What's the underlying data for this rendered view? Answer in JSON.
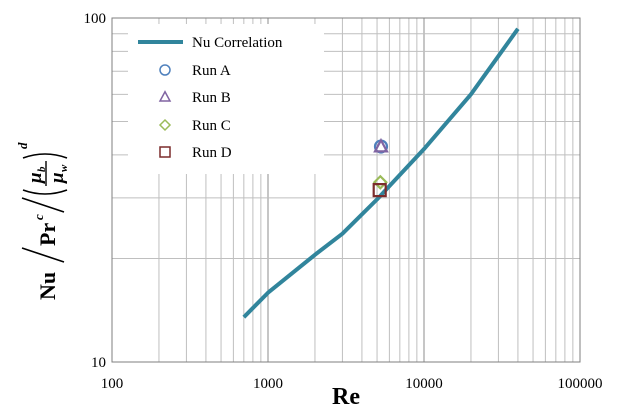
{
  "chart_data": {
    "type": "scatter",
    "xscale": "log",
    "yscale": "log",
    "xlim": [
      100,
      100000
    ],
    "ylim": [
      10,
      100
    ],
    "grid": true,
    "legend_position": "top-left",
    "xlabel": "Re",
    "ylabel": {
      "nu": "Nu",
      "pr": "Pr",
      "pr_exp": "c",
      "mu_b": "μ",
      "mu_b_sub": "b",
      "mu_w": "μ",
      "mu_w_sub": "w",
      "exp": "d"
    },
    "x_ticks": [
      "100",
      "1000",
      "10000",
      "100000"
    ],
    "y_ticks": [
      "10",
      "100"
    ],
    "series": [
      {
        "name": "Nu Correlation",
        "kind": "line",
        "color": "#31859c",
        "points": [
          [
            700,
            13.5
          ],
          [
            1000,
            15.9
          ],
          [
            2000,
            20.5
          ],
          [
            3000,
            23.6
          ],
          [
            5000,
            29.7
          ],
          [
            7000,
            35
          ],
          [
            10000,
            41.6
          ],
          [
            20000,
            60
          ],
          [
            40000,
            93
          ]
        ]
      },
      {
        "name": "Run A",
        "kind": "marker",
        "marker": "circle",
        "color": "#4f81bd",
        "points": [
          [
            5300,
            42.3
          ]
        ]
      },
      {
        "name": "Run B",
        "kind": "marker",
        "marker": "triangle",
        "color": "#8064a2",
        "points": [
          [
            5300,
            42.3
          ]
        ]
      },
      {
        "name": "Run C",
        "kind": "marker",
        "marker": "diamond",
        "color": "#9bbb59",
        "points": [
          [
            5250,
            33.3
          ]
        ]
      },
      {
        "name": "Run D",
        "kind": "marker",
        "marker": "square",
        "color": "#7b2c2c",
        "points": [
          [
            5200,
            31.6
          ]
        ]
      }
    ]
  }
}
